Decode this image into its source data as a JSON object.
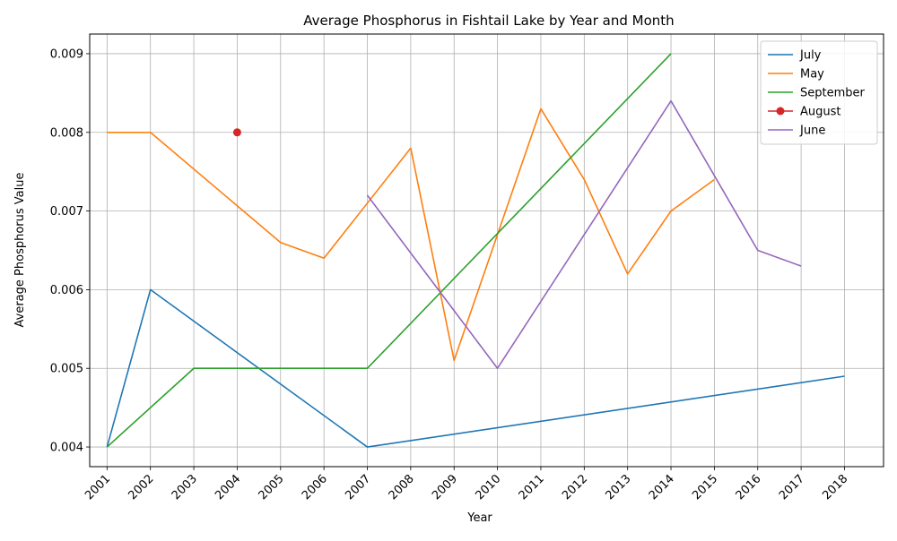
{
  "chart_data": {
    "type": "line",
    "title": "Average Phosphorus in Fishtail Lake by Year and Month",
    "xlabel": "Year",
    "ylabel": "Average Phosphorus Value",
    "x_ticks": [
      2001,
      2002,
      2003,
      2004,
      2005,
      2006,
      2007,
      2008,
      2009,
      2010,
      2011,
      2012,
      2013,
      2014,
      2015,
      2016,
      2017,
      2018
    ],
    "y_ticks": [
      0.004,
      0.005,
      0.006,
      0.007,
      0.008,
      0.009
    ],
    "xlim": [
      2000.6,
      2018.9
    ],
    "ylim": [
      0.00375,
      0.00925
    ],
    "grid": true,
    "legend_position": "top-right",
    "series": [
      {
        "name": "July",
        "color": "#1f77b4",
        "marker": "none",
        "points": [
          [
            2001,
            0.004
          ],
          [
            2002,
            0.006
          ],
          [
            2007,
            0.004
          ],
          [
            2018,
            0.0049
          ]
        ]
      },
      {
        "name": "May",
        "color": "#ff7f0e",
        "marker": "none",
        "points": [
          [
            2001,
            0.008
          ],
          [
            2002,
            0.008
          ],
          [
            2005,
            0.0066
          ],
          [
            2006,
            0.0064
          ],
          [
            2007,
            0.0071
          ],
          [
            2008,
            0.0078
          ],
          [
            2009,
            0.0051
          ],
          [
            2010,
            0.0067
          ],
          [
            2011,
            0.0083
          ],
          [
            2012,
            0.0074
          ],
          [
            2013,
            0.0062
          ],
          [
            2014,
            0.007
          ],
          [
            2015,
            0.0074
          ]
        ]
      },
      {
        "name": "September",
        "color": "#2ca02c",
        "marker": "none",
        "points": [
          [
            2001,
            0.004
          ],
          [
            2003,
            0.005
          ],
          [
            2007,
            0.005
          ],
          [
            2014,
            0.009
          ]
        ]
      },
      {
        "name": "August",
        "color": "#d62728",
        "marker": "circle",
        "points": [
          [
            2004,
            0.008
          ]
        ]
      },
      {
        "name": "June",
        "color": "#9467bd",
        "marker": "none",
        "points": [
          [
            2007,
            0.0072
          ],
          [
            2010,
            0.005
          ],
          [
            2014,
            0.0084
          ],
          [
            2016,
            0.0065
          ],
          [
            2017,
            0.0063
          ]
        ]
      }
    ]
  }
}
